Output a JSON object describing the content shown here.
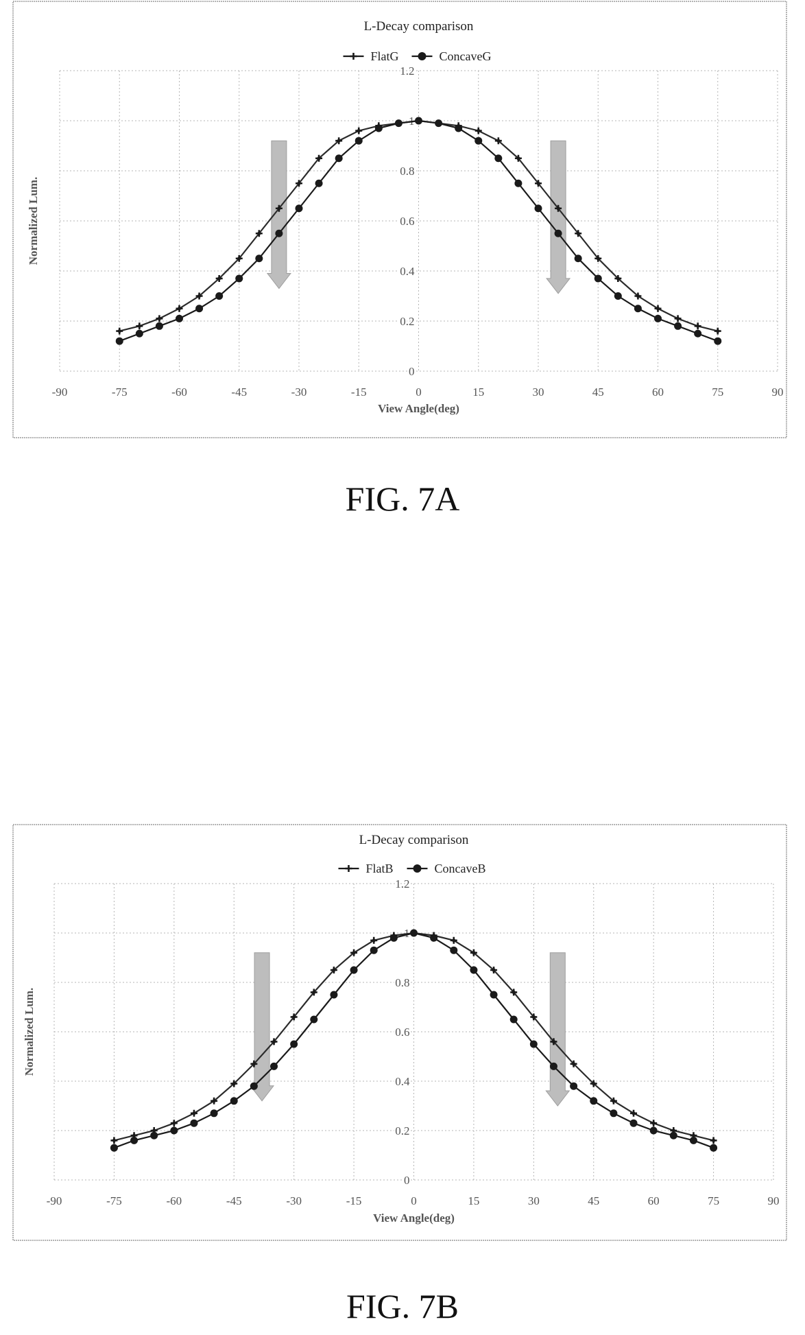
{
  "figures": [
    {
      "caption": "FIG. 7A",
      "chart_data": {
        "type": "line",
        "title": "L-Decay comparison",
        "xlabel": "View Angle(deg)",
        "ylabel": "Normalized Lum.",
        "xlim": [
          -90,
          90
        ],
        "ylim": [
          0,
          1.2
        ],
        "xticks": [
          "-90",
          "-75",
          "-60",
          "-45",
          "-30",
          "-15",
          "0",
          "15",
          "30",
          "45",
          "60",
          "75",
          "90"
        ],
        "yticks": [
          "0",
          "0.2",
          "0.4",
          "0.6",
          "0.8",
          "1",
          "1.2"
        ],
        "grid": true,
        "legend_position": "top",
        "x": [
          -75,
          -70,
          -65,
          -60,
          -55,
          -50,
          -45,
          -40,
          -35,
          -30,
          -25,
          -20,
          -15,
          -10,
          -5,
          0,
          5,
          10,
          15,
          20,
          25,
          30,
          35,
          40,
          45,
          50,
          55,
          60,
          65,
          70,
          75
        ],
        "series": [
          {
            "name": "FlatG",
            "marker": "plus",
            "values": [
              0.16,
              0.18,
              0.21,
              0.25,
              0.3,
              0.37,
              0.45,
              0.55,
              0.65,
              0.75,
              0.85,
              0.92,
              0.96,
              0.98,
              0.99,
              1.0,
              0.99,
              0.98,
              0.96,
              0.92,
              0.85,
              0.75,
              0.65,
              0.55,
              0.45,
              0.37,
              0.3,
              0.25,
              0.21,
              0.18,
              0.16
            ]
          },
          {
            "name": "ConcaveG",
            "marker": "circle",
            "values": [
              0.12,
              0.15,
              0.18,
              0.21,
              0.25,
              0.3,
              0.37,
              0.45,
              0.55,
              0.65,
              0.75,
              0.85,
              0.92,
              0.97,
              0.99,
              1.0,
              0.99,
              0.97,
              0.92,
              0.85,
              0.75,
              0.65,
              0.55,
              0.45,
              0.37,
              0.3,
              0.25,
              0.21,
              0.18,
              0.15,
              0.12
            ]
          }
        ],
        "arrows": [
          {
            "x": -35,
            "y_from": 0.92,
            "y_to": 0.33
          },
          {
            "x": 35,
            "y_from": 0.92,
            "y_to": 0.31
          }
        ]
      }
    },
    {
      "caption": "FIG. 7B",
      "chart_data": {
        "type": "line",
        "title": "L-Decay comparison",
        "xlabel": "View Angle(deg)",
        "ylabel": "Normalized Lum.",
        "xlim": [
          -90,
          90
        ],
        "ylim": [
          0,
          1.2
        ],
        "xticks": [
          "-90",
          "-75",
          "-60",
          "-45",
          "-30",
          "-15",
          "0",
          "15",
          "30",
          "45",
          "60",
          "75",
          "90"
        ],
        "yticks": [
          "0",
          "0.2",
          "0.4",
          "0.6",
          "0.8",
          "1",
          "1.2"
        ],
        "grid": true,
        "legend_position": "top",
        "x": [
          -75,
          -70,
          -65,
          -60,
          -55,
          -50,
          -45,
          -40,
          -35,
          -30,
          -25,
          -20,
          -15,
          -10,
          -5,
          0,
          5,
          10,
          15,
          20,
          25,
          30,
          35,
          40,
          45,
          50,
          55,
          60,
          65,
          70,
          75
        ],
        "series": [
          {
            "name": "FlatB",
            "marker": "plus",
            "values": [
              0.16,
              0.18,
              0.2,
              0.23,
              0.27,
              0.32,
              0.39,
              0.47,
              0.56,
              0.66,
              0.76,
              0.85,
              0.92,
              0.97,
              0.99,
              1.0,
              0.99,
              0.97,
              0.92,
              0.85,
              0.76,
              0.66,
              0.56,
              0.47,
              0.39,
              0.32,
              0.27,
              0.23,
              0.2,
              0.18,
              0.16
            ]
          },
          {
            "name": "ConcaveB",
            "marker": "circle",
            "values": [
              0.13,
              0.16,
              0.18,
              0.2,
              0.23,
              0.27,
              0.32,
              0.38,
              0.46,
              0.55,
              0.65,
              0.75,
              0.85,
              0.93,
              0.98,
              1.0,
              0.98,
              0.93,
              0.85,
              0.75,
              0.65,
              0.55,
              0.46,
              0.38,
              0.32,
              0.27,
              0.23,
              0.2,
              0.18,
              0.16,
              0.13
            ]
          }
        ],
        "arrows": [
          {
            "x": -38,
            "y_from": 0.92,
            "y_to": 0.32
          },
          {
            "x": 36,
            "y_from": 0.92,
            "y_to": 0.3
          }
        ]
      }
    }
  ]
}
